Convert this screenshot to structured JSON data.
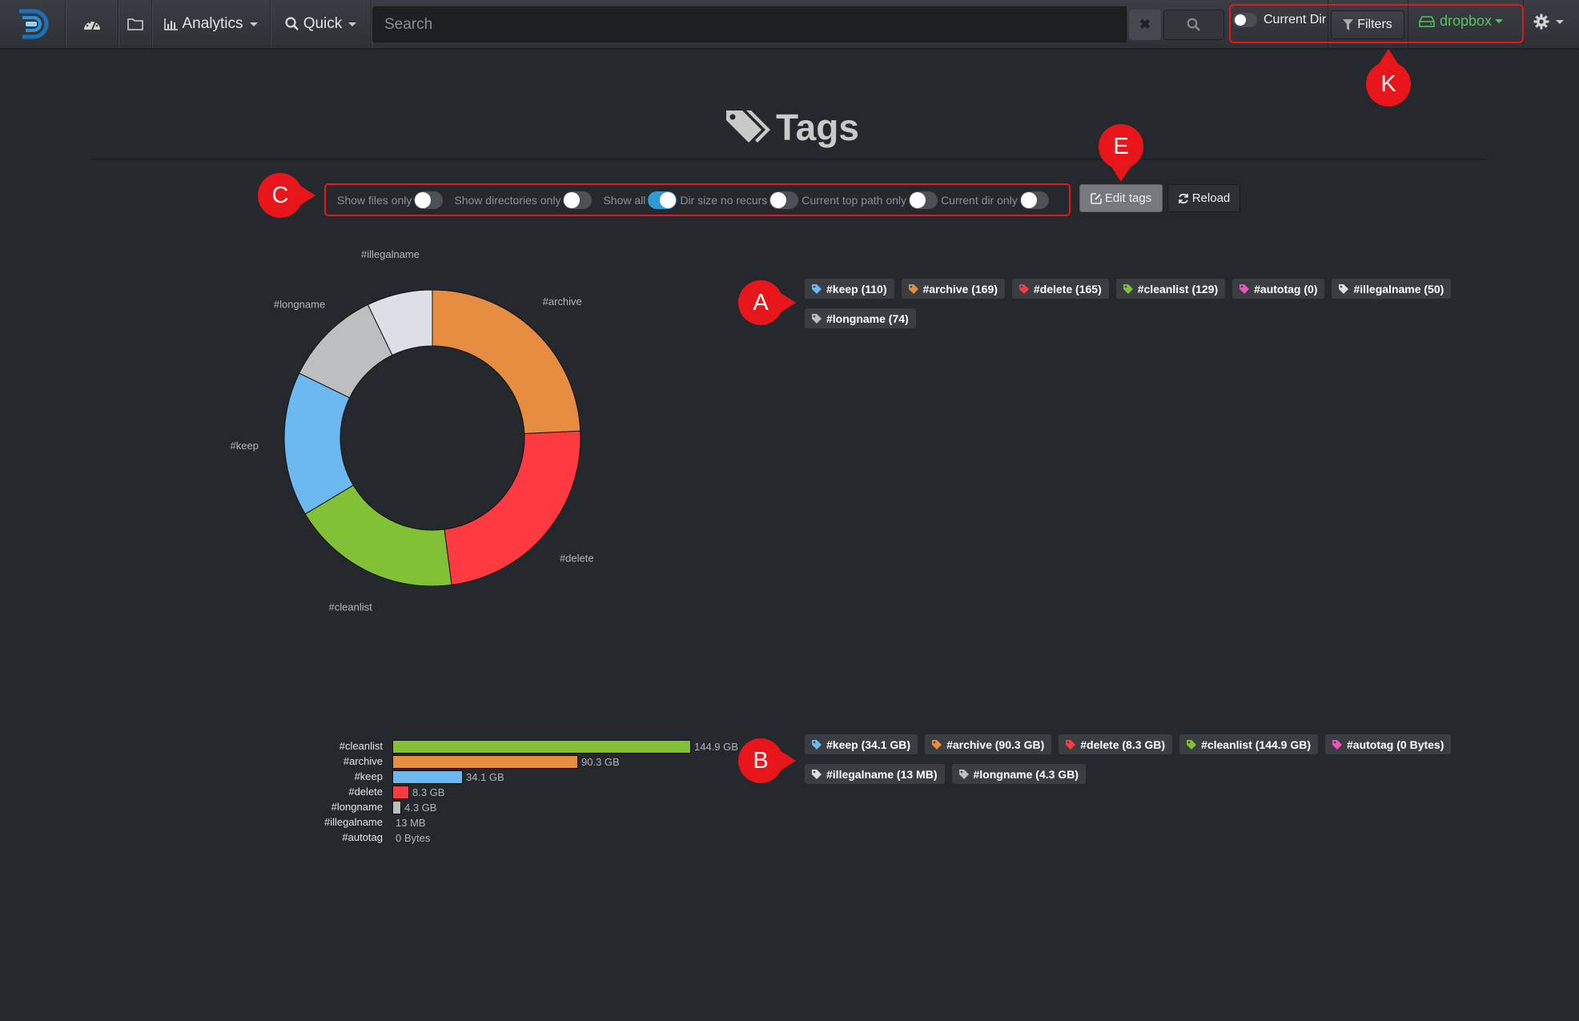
{
  "navbar": {
    "logo": "diskover-logo",
    "dashboard_icon": "dashboard-icon",
    "folder_icon": "folder-icon",
    "analytics_label": "Analytics",
    "quick_label": "Quick",
    "search_placeholder": "Search",
    "search_value": "",
    "clear_label": "✖",
    "current_dir_label": "Current Dir",
    "current_dir_on": false,
    "filters_label": "Filters",
    "index_label": "dropbox",
    "index_color": "#58c35c"
  },
  "page": {
    "title": "Tags"
  },
  "callouts": {
    "k": "K",
    "e": "E",
    "c": "C",
    "a": "A",
    "b": "B"
  },
  "toggles": [
    {
      "label": "Show files only",
      "on": false
    },
    {
      "label": "Show directories only",
      "on": false
    },
    {
      "label": "Show all",
      "on": true
    },
    {
      "label": "Dir size no recurs",
      "on": false
    },
    {
      "label": "Current top path only",
      "on": false
    },
    {
      "label": "Current dir only",
      "on": false
    }
  ],
  "buttons": {
    "edit_tags": "Edit tags",
    "reload": "Reload"
  },
  "tag_counts": [
    {
      "label": "#keep (110)",
      "color": "#6cb8f0"
    },
    {
      "label": "#archive (169)",
      "color": "#e68d42"
    },
    {
      "label": "#delete (165)",
      "color": "#ff3a40"
    },
    {
      "label": "#cleanlist (129)",
      "color": "#82c036"
    },
    {
      "label": "#autotag (0)",
      "color": "#e955b8"
    },
    {
      "label": "#illegalname (50)",
      "color": "#dcdfe6"
    },
    {
      "label": "#longname (74)",
      "color": "#bdbebf"
    }
  ],
  "tag_sizes": [
    {
      "label": "#keep (34.1 GB)",
      "color": "#6cb8f0"
    },
    {
      "label": "#archive (90.3 GB)",
      "color": "#e68d42"
    },
    {
      "label": "#delete (8.3 GB)",
      "color": "#ff3a40"
    },
    {
      "label": "#cleanlist (144.9 GB)",
      "color": "#82c036"
    },
    {
      "label": "#autotag (0 Bytes)",
      "color": "#e955b8"
    },
    {
      "label": "#illegalname (13 MB)",
      "color": "#dcdfe6"
    },
    {
      "label": "#longname (4.3 GB)",
      "color": "#bdbebf"
    }
  ],
  "chart_data": [
    {
      "type": "pie",
      "subtype": "donut",
      "title": "",
      "categories": [
        "#archive",
        "#delete",
        "#cleanlist",
        "#keep",
        "#longname",
        "#illegalname",
        "#autotag"
      ],
      "values": [
        169,
        165,
        129,
        110,
        74,
        50,
        0
      ],
      "colors": [
        "#e68d42",
        "#ff3a40",
        "#82c036",
        "#6cb8f0",
        "#bdbebf",
        "#dcdfe6",
        "#e955b8"
      ],
      "legend": "none"
    },
    {
      "type": "bar",
      "orientation": "horizontal",
      "title": "",
      "categories": [
        "#cleanlist",
        "#archive",
        "#keep",
        "#delete",
        "#longname",
        "#illegalname",
        "#autotag"
      ],
      "values": [
        144.9,
        90.3,
        34.1,
        8.3,
        4.3,
        0.013,
        0
      ],
      "unit": "GB",
      "value_labels": [
        "144.9 GB",
        "90.3 GB",
        "34.1 GB",
        "8.3 GB",
        "4.3 GB",
        "13 MB",
        "0 Bytes"
      ],
      "colors": [
        "#82c036",
        "#e68d42",
        "#6cb8f0",
        "#ff3a40",
        "#bdbebf",
        "#dcdfe6",
        "#e955b8"
      ],
      "xlabel": "",
      "ylabel": "",
      "grid": false
    }
  ]
}
